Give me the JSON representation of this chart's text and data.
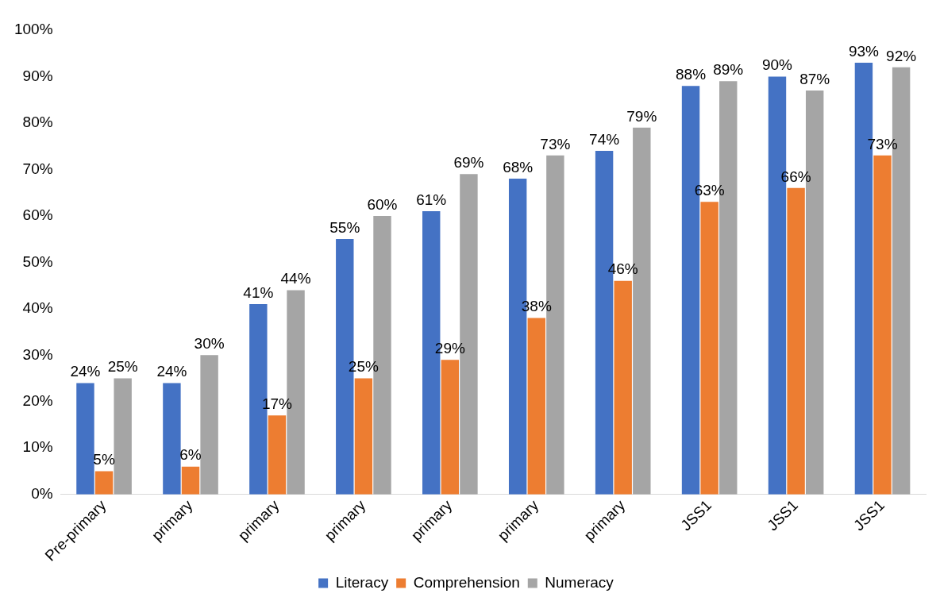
{
  "chart_data": {
    "type": "bar",
    "categories": [
      "Pre-primary",
      "primary",
      "primary",
      "primary",
      "primary",
      "primary",
      "primary",
      "JSS1",
      "JSS1",
      "JSS1"
    ],
    "series": [
      {
        "name": "Literacy",
        "color": "#4472c4",
        "values": [
          24,
          24,
          41,
          55,
          61,
          68,
          74,
          88,
          90,
          93
        ],
        "value_labels": [
          "24%",
          "24%",
          "41%",
          "55%",
          "61%",
          "68%",
          "74%",
          "88%",
          "90%",
          "93%"
        ]
      },
      {
        "name": "Comprehension",
        "color": "#ed7d31",
        "values": [
          5,
          6,
          17,
          25,
          29,
          38,
          46,
          63,
          66,
          73
        ],
        "value_labels": [
          "5%",
          "6%",
          "17%",
          "25%",
          "29%",
          "38%",
          "46%",
          "63%",
          "66%",
          "73%"
        ]
      },
      {
        "name": "Numeracy",
        "color": "#a5a5a5",
        "values": [
          25,
          30,
          44,
          60,
          69,
          73,
          79,
          89,
          87,
          92
        ],
        "value_labels": [
          "25%",
          "30%",
          "44%",
          "60%",
          "69%",
          "73%",
          "79%",
          "89%",
          "87%",
          "92%"
        ]
      }
    ],
    "ylim": [
      0,
      100
    ],
    "yticks": [
      {
        "value": 0,
        "label": "0%"
      },
      {
        "value": 10,
        "label": "10%"
      },
      {
        "value": 20,
        "label": "20%"
      },
      {
        "value": 30,
        "label": "30%"
      },
      {
        "value": 40,
        "label": "40%"
      },
      {
        "value": 50,
        "label": "50%"
      },
      {
        "value": 60,
        "label": "60%"
      },
      {
        "value": 70,
        "label": "70%"
      },
      {
        "value": 80,
        "label": "80%"
      },
      {
        "value": 90,
        "label": "90%"
      },
      {
        "value": 100,
        "label": "100%"
      }
    ],
    "legend": "bottom"
  }
}
